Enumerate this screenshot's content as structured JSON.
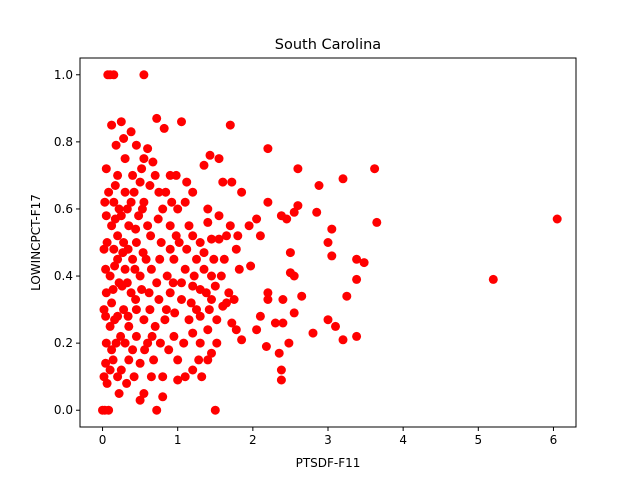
{
  "chart_data": {
    "type": "scatter",
    "title": "South Carolina",
    "xlabel": "PTSDF-F11",
    "ylabel": "LOWINCPCT-F17",
    "xlim": [
      -0.3,
      6.3
    ],
    "ylim": [
      -0.05,
      1.05
    ],
    "xticks": [
      0,
      1,
      2,
      3,
      4,
      5,
      6
    ],
    "yticks": [
      0.0,
      0.2,
      0.4,
      0.6,
      0.8,
      1.0
    ],
    "xtick_labels": [
      "0",
      "1",
      "2",
      "3",
      "4",
      "5",
      "6"
    ],
    "ytick_labels": [
      "0.0",
      "0.2",
      "0.4",
      "0.6",
      "0.8",
      "1.0"
    ],
    "grid": false,
    "marker_color": "#ff0000",
    "series": [
      {
        "points": [
          [
            0.07,
            1.0
          ],
          [
            0.1,
            1.0
          ],
          [
            0.15,
            1.0
          ],
          [
            0.55,
            1.0
          ],
          [
            0.72,
            0.87
          ],
          [
            0.82,
            0.84
          ],
          [
            1.05,
            0.86
          ],
          [
            0.25,
            0.86
          ],
          [
            0.12,
            0.85
          ],
          [
            1.7,
            0.85
          ],
          [
            0.38,
            0.83
          ],
          [
            0.28,
            0.81
          ],
          [
            0.45,
            0.79
          ],
          [
            0.18,
            0.79
          ],
          [
            2.2,
            0.78
          ],
          [
            0.05,
            0.72
          ],
          [
            1.55,
            0.75
          ],
          [
            1.43,
            0.76
          ],
          [
            1.35,
            0.73
          ],
          [
            0.6,
            0.78
          ],
          [
            0.55,
            0.75
          ],
          [
            0.9,
            0.7
          ],
          [
            0.98,
            0.7
          ],
          [
            0.67,
            0.74
          ],
          [
            2.6,
            0.72
          ],
          [
            3.62,
            0.72
          ],
          [
            1.6,
            0.68
          ],
          [
            1.72,
            0.68
          ],
          [
            1.85,
            0.65
          ],
          [
            2.88,
            0.67
          ],
          [
            3.2,
            0.69
          ],
          [
            2.2,
            0.62
          ],
          [
            2.38,
            0.58
          ],
          [
            2.55,
            0.59
          ],
          [
            2.6,
            0.61
          ],
          [
            2.45,
            0.57
          ],
          [
            2.85,
            0.59
          ],
          [
            1.2,
            0.65
          ],
          [
            1.12,
            0.68
          ],
          [
            1.1,
            0.62
          ],
          [
            1.4,
            0.6
          ],
          [
            1.55,
            0.58
          ],
          [
            1.4,
            0.56
          ],
          [
            1.7,
            0.55
          ],
          [
            1.95,
            0.55
          ],
          [
            2.05,
            0.57
          ],
          [
            2.1,
            0.52
          ],
          [
            1.8,
            0.52
          ],
          [
            1.65,
            0.52
          ],
          [
            1.45,
            0.51
          ],
          [
            1.55,
            0.51
          ],
          [
            1.3,
            0.5
          ],
          [
            1.2,
            0.52
          ],
          [
            3.05,
            0.54
          ],
          [
            3.65,
            0.56
          ],
          [
            3.0,
            0.5
          ],
          [
            3.05,
            0.46
          ],
          [
            3.38,
            0.45
          ],
          [
            3.48,
            0.44
          ],
          [
            3.38,
            0.39
          ],
          [
            2.5,
            0.47
          ],
          [
            2.5,
            0.41
          ],
          [
            2.55,
            0.4
          ],
          [
            1.97,
            0.43
          ],
          [
            3.25,
            0.34
          ],
          [
            2.65,
            0.34
          ],
          [
            2.2,
            0.35
          ],
          [
            2.2,
            0.33
          ],
          [
            2.4,
            0.33
          ],
          [
            2.55,
            0.29
          ],
          [
            2.1,
            0.28
          ],
          [
            2.05,
            0.24
          ],
          [
            2.3,
            0.26
          ],
          [
            2.4,
            0.26
          ],
          [
            2.18,
            0.19
          ],
          [
            2.35,
            0.17
          ],
          [
            2.48,
            0.2
          ],
          [
            2.8,
            0.23
          ],
          [
            3.0,
            0.27
          ],
          [
            3.1,
            0.25
          ],
          [
            3.2,
            0.21
          ],
          [
            3.38,
            0.22
          ],
          [
            2.38,
            0.12
          ],
          [
            2.38,
            0.09
          ],
          [
            1.78,
            0.24
          ],
          [
            1.85,
            0.21
          ],
          [
            1.72,
            0.26
          ],
          [
            1.52,
            0.27
          ],
          [
            1.45,
            0.33
          ],
          [
            1.65,
            0.32
          ],
          [
            1.75,
            0.33
          ],
          [
            1.6,
            0.31
          ],
          [
            1.3,
            0.28
          ],
          [
            1.4,
            0.24
          ],
          [
            1.2,
            0.23
          ],
          [
            1.3,
            0.2
          ],
          [
            1.45,
            0.17
          ],
          [
            1.4,
            0.15
          ],
          [
            1.32,
            0.1
          ],
          [
            1.2,
            0.12
          ],
          [
            1.1,
            0.1
          ],
          [
            1.0,
            0.09
          ],
          [
            1.5,
            0.0
          ],
          [
            0.72,
            0.0
          ],
          [
            0.0,
            0.0
          ],
          [
            0.03,
            0.0
          ],
          [
            0.08,
            0.0
          ],
          [
            0.8,
            0.04
          ],
          [
            0.8,
            0.1
          ],
          [
            0.55,
            0.05
          ],
          [
            0.5,
            0.03
          ],
          [
            6.05,
            0.57
          ],
          [
            5.2,
            0.39
          ],
          [
            0.9,
            0.55
          ],
          [
            1.0,
            0.6
          ],
          [
            0.95,
            0.45
          ],
          [
            1.1,
            0.42
          ],
          [
            1.2,
            0.37
          ],
          [
            1.05,
            0.33
          ],
          [
            0.9,
            0.35
          ],
          [
            0.85,
            0.3
          ],
          [
            1.15,
            0.27
          ],
          [
            0.95,
            0.22
          ],
          [
            0.88,
            0.18
          ],
          [
            1.0,
            0.15
          ],
          [
            0.9,
            0.48
          ],
          [
            1.25,
            0.45
          ],
          [
            1.35,
            0.42
          ],
          [
            1.45,
            0.4
          ],
          [
            1.3,
            0.36
          ],
          [
            1.5,
            0.37
          ],
          [
            1.12,
            0.48
          ],
          [
            0.98,
            0.52
          ],
          [
            0.8,
            0.6
          ],
          [
            0.75,
            0.65
          ],
          [
            0.7,
            0.7
          ],
          [
            0.78,
            0.5
          ],
          [
            0.72,
            0.38
          ],
          [
            0.7,
            0.25
          ],
          [
            0.68,
            0.15
          ],
          [
            0.65,
            0.1
          ],
          [
            0.6,
            0.55
          ],
          [
            0.58,
            0.45
          ],
          [
            0.62,
            0.35
          ],
          [
            0.6,
            0.2
          ],
          [
            0.55,
            0.62
          ],
          [
            0.5,
            0.68
          ],
          [
            0.48,
            0.58
          ],
          [
            0.45,
            0.5
          ],
          [
            0.5,
            0.4
          ],
          [
            0.45,
            0.3
          ],
          [
            0.5,
            0.14
          ],
          [
            0.42,
            0.1
          ],
          [
            0.4,
            0.7
          ],
          [
            0.38,
            0.62
          ],
          [
            0.35,
            0.55
          ],
          [
            0.4,
            0.45
          ],
          [
            0.38,
            0.35
          ],
          [
            0.35,
            0.25
          ],
          [
            0.4,
            0.18
          ],
          [
            0.32,
            0.08
          ],
          [
            0.3,
            0.75
          ],
          [
            0.3,
            0.65
          ],
          [
            0.28,
            0.5
          ],
          [
            0.3,
            0.42
          ],
          [
            0.28,
            0.3
          ],
          [
            0.3,
            0.2
          ],
          [
            0.25,
            0.12
          ],
          [
            0.22,
            0.05
          ],
          [
            0.2,
            0.7
          ],
          [
            0.22,
            0.6
          ],
          [
            0.2,
            0.52
          ],
          [
            0.2,
            0.45
          ],
          [
            0.22,
            0.38
          ],
          [
            0.2,
            0.28
          ],
          [
            0.18,
            0.2
          ],
          [
            0.2,
            0.1
          ],
          [
            0.15,
            0.62
          ],
          [
            0.12,
            0.55
          ],
          [
            0.15,
            0.48
          ],
          [
            0.1,
            0.4
          ],
          [
            0.12,
            0.32
          ],
          [
            0.1,
            0.25
          ],
          [
            0.12,
            0.18
          ],
          [
            0.1,
            0.12
          ],
          [
            0.08,
            0.65
          ],
          [
            0.05,
            0.58
          ],
          [
            0.06,
            0.5
          ],
          [
            0.04,
            0.42
          ],
          [
            0.05,
            0.35
          ],
          [
            0.04,
            0.28
          ],
          [
            0.05,
            0.2
          ],
          [
            0.04,
            0.14
          ],
          [
            0.06,
            0.08
          ],
          [
            0.03,
            0.62
          ],
          [
            0.02,
            0.48
          ],
          [
            0.02,
            0.3
          ],
          [
            0.02,
            0.1
          ],
          [
            0.25,
            0.58
          ],
          [
            0.27,
            0.47
          ],
          [
            0.26,
            0.37
          ],
          [
            0.24,
            0.22
          ],
          [
            0.17,
            0.67
          ],
          [
            0.17,
            0.57
          ],
          [
            0.16,
            0.43
          ],
          [
            0.14,
            0.36
          ],
          [
            0.16,
            0.27
          ],
          [
            0.14,
            0.15
          ],
          [
            0.33,
            0.6
          ],
          [
            0.34,
            0.48
          ],
          [
            0.33,
            0.38
          ],
          [
            0.34,
            0.28
          ],
          [
            0.35,
            0.15
          ],
          [
            0.42,
            0.65
          ],
          [
            0.44,
            0.54
          ],
          [
            0.43,
            0.42
          ],
          [
            0.44,
            0.33
          ],
          [
            0.45,
            0.22
          ],
          [
            0.52,
            0.72
          ],
          [
            0.53,
            0.6
          ],
          [
            0.54,
            0.47
          ],
          [
            0.52,
            0.36
          ],
          [
            0.55,
            0.27
          ],
          [
            0.56,
            0.18
          ],
          [
            0.63,
            0.67
          ],
          [
            0.64,
            0.52
          ],
          [
            0.65,
            0.42
          ],
          [
            0.63,
            0.3
          ],
          [
            0.66,
            0.22
          ],
          [
            0.74,
            0.57
          ],
          [
            0.76,
            0.45
          ],
          [
            0.75,
            0.33
          ],
          [
            0.77,
            0.2
          ],
          [
            0.84,
            0.65
          ],
          [
            0.86,
            0.4
          ],
          [
            0.83,
            0.27
          ],
          [
            0.92,
            0.62
          ],
          [
            0.94,
            0.38
          ],
          [
            0.96,
            0.29
          ],
          [
            1.02,
            0.5
          ],
          [
            1.05,
            0.38
          ],
          [
            1.08,
            0.2
          ],
          [
            1.15,
            0.55
          ],
          [
            1.18,
            0.32
          ],
          [
            1.22,
            0.4
          ],
          [
            1.25,
            0.3
          ],
          [
            1.28,
            0.15
          ],
          [
            1.35,
            0.47
          ],
          [
            1.38,
            0.35
          ],
          [
            1.42,
            0.3
          ],
          [
            1.48,
            0.45
          ],
          [
            1.52,
            0.2
          ],
          [
            1.58,
            0.4
          ],
          [
            1.62,
            0.45
          ],
          [
            1.68,
            0.35
          ],
          [
            1.78,
            0.48
          ],
          [
            1.82,
            0.42
          ]
        ]
      }
    ]
  }
}
